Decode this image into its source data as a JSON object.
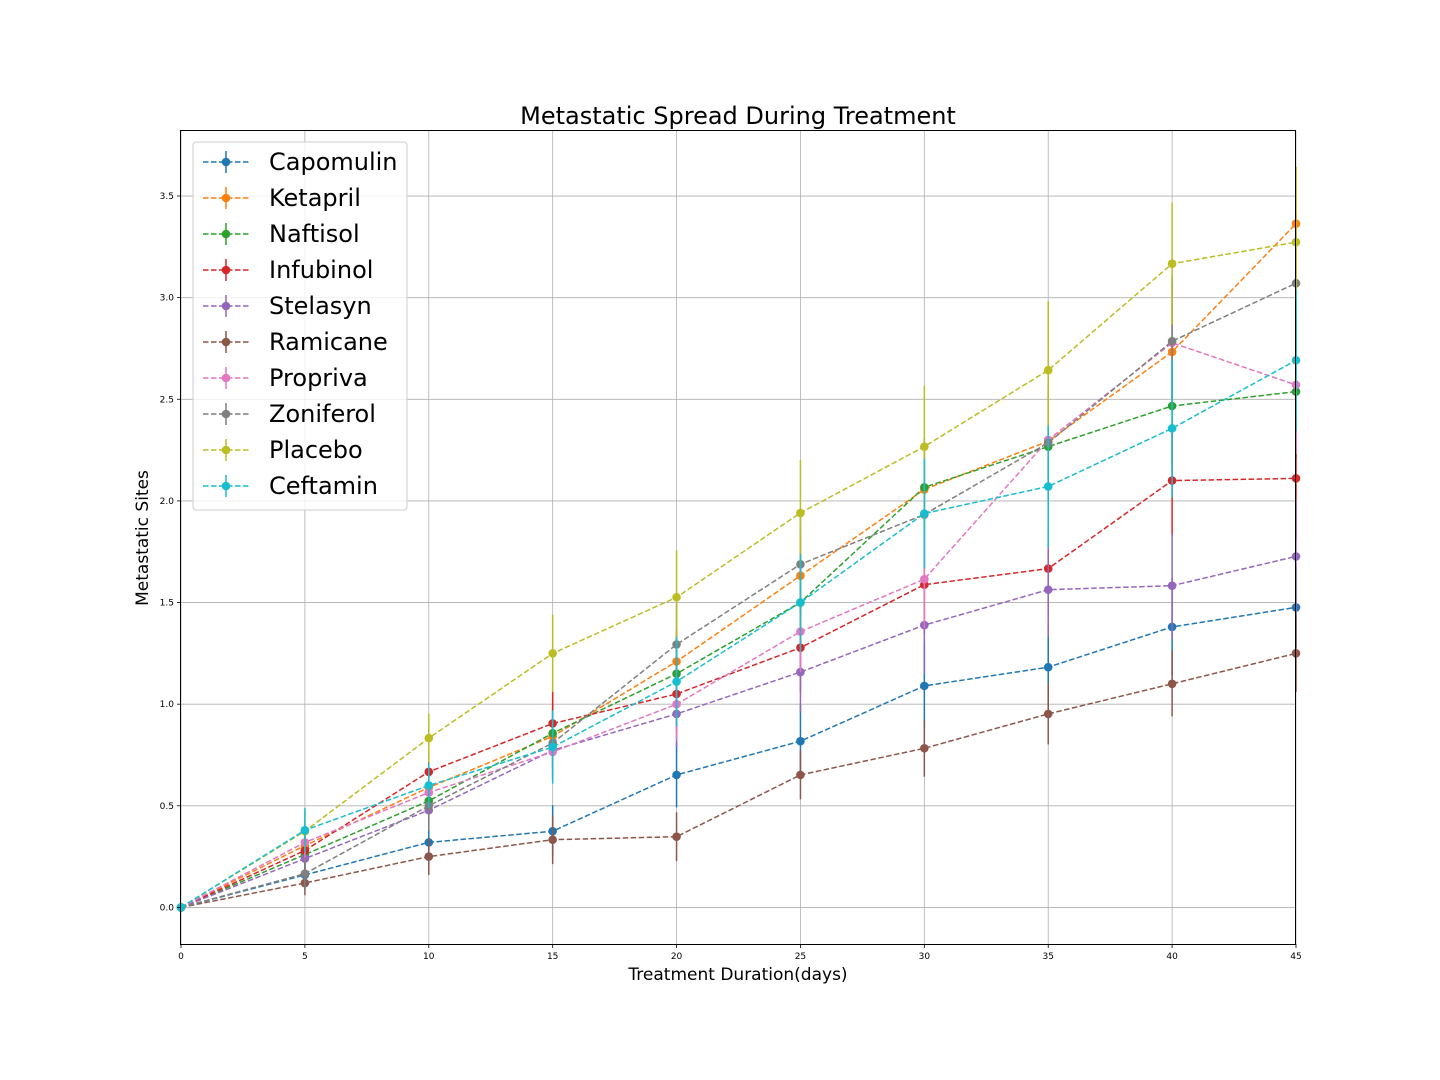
{
  "chart_data": {
    "type": "line",
    "title": "Metastatic Spread During Treatment",
    "xlabel": "Treatment Duration(days)",
    "ylabel": "Metastatic Sites",
    "x": [
      0,
      5,
      10,
      15,
      20,
      25,
      30,
      35,
      40,
      45
    ],
    "xlim": [
      0,
      45
    ],
    "ylim": [
      -0.18,
      3.82
    ],
    "xticks": [
      "0",
      "5",
      "10",
      "15",
      "20",
      "25",
      "30",
      "35",
      "40",
      "45"
    ],
    "yticks": [
      "0.0",
      "0.5",
      "1.0",
      "1.5",
      "2.0",
      "2.5",
      "3.0",
      "3.5"
    ],
    "grid": true,
    "legend": "upper left",
    "error_bars": true,
    "series": [
      {
        "name": "Capomulin",
        "color": "#1f77b4",
        "values": [
          0,
          0.16,
          0.32,
          0.375,
          0.652,
          0.818,
          1.09,
          1.182,
          1.38,
          1.476
        ],
        "errors": [
          0,
          0.074,
          0.094,
          0.128,
          0.16,
          0.18,
          0.21,
          0.21,
          0.24,
          0.2
        ]
      },
      {
        "name": "Ketapril",
        "color": "#ff7f0e",
        "values": [
          0,
          0.304,
          0.59,
          0.842,
          1.21,
          1.632,
          2.056,
          2.294,
          2.733,
          3.364
        ],
        "errors": [
          0,
          0.098,
          0.1,
          0.14,
          0.16,
          0.2,
          0.19,
          0.24,
          0.24,
          0.28
        ]
      },
      {
        "name": "Naftisol",
        "color": "#2ca02c",
        "values": [
          0,
          0.26,
          0.524,
          0.857,
          1.15,
          1.5,
          2.067,
          2.267,
          2.467,
          2.538
        ],
        "errors": [
          0,
          0.09,
          0.13,
          0.17,
          0.2,
          0.22,
          0.24,
          0.26,
          0.3,
          0.33
        ]
      },
      {
        "name": "Infubinol",
        "color": "#d62728",
        "values": [
          0,
          0.28,
          0.667,
          0.905,
          1.05,
          1.278,
          1.588,
          1.667,
          2.1,
          2.111
        ],
        "errors": [
          0,
          0.1,
          0.1,
          0.16,
          0.19,
          0.22,
          0.24,
          0.22,
          0.27,
          0.3
        ]
      },
      {
        "name": "Stelasyn",
        "color": "#9467bd",
        "values": [
          0,
          0.24,
          0.478,
          0.773,
          0.952,
          1.158,
          1.389,
          1.563,
          1.583,
          1.727
        ],
        "errors": [
          0,
          0.1,
          0.1,
          0.14,
          0.16,
          0.2,
          0.24,
          0.23,
          0.26,
          0.28
        ]
      },
      {
        "name": "Ramicane",
        "color": "#8c564b",
        "values": [
          0,
          0.12,
          0.25,
          0.333,
          0.348,
          0.652,
          0.783,
          0.952,
          1.1,
          1.25
        ],
        "errors": [
          0,
          0.06,
          0.09,
          0.12,
          0.12,
          0.12,
          0.14,
          0.15,
          0.16,
          0.19
        ]
      },
      {
        "name": "Propriva",
        "color": "#e377c2",
        "values": [
          0,
          0.32,
          0.565,
          0.765,
          1.0,
          1.357,
          1.615,
          2.3,
          2.778,
          2.571
        ],
        "errors": [
          0,
          0.1,
          0.11,
          0.14,
          0.17,
          0.2,
          0.24,
          0.28,
          0.3,
          0.34
        ]
      },
      {
        "name": "Zoniferol",
        "color": "#7f7f7f",
        "values": [
          0,
          0.166,
          0.5,
          0.809,
          1.294,
          1.688,
          1.933,
          2.286,
          2.786,
          3.071
        ],
        "errors": [
          0,
          0.08,
          0.12,
          0.16,
          0.2,
          0.24,
          0.26,
          0.3,
          0.32,
          0.34
        ]
      },
      {
        "name": "Placebo",
        "color": "#bcbd22",
        "values": [
          0,
          0.375,
          0.833,
          1.25,
          1.526,
          1.941,
          2.267,
          2.643,
          3.167,
          3.273
        ],
        "errors": [
          0,
          0.1,
          0.12,
          0.19,
          0.23,
          0.26,
          0.3,
          0.34,
          0.3,
          0.37
        ]
      },
      {
        "name": "Ceftamin",
        "color": "#17becf",
        "values": [
          0,
          0.38,
          0.6,
          0.789,
          1.111,
          1.5,
          1.938,
          2.071,
          2.357,
          2.692
        ],
        "errors": [
          0,
          0.11,
          0.11,
          0.18,
          0.22,
          0.24,
          0.27,
          0.3,
          0.34,
          0.35
        ]
      }
    ]
  }
}
